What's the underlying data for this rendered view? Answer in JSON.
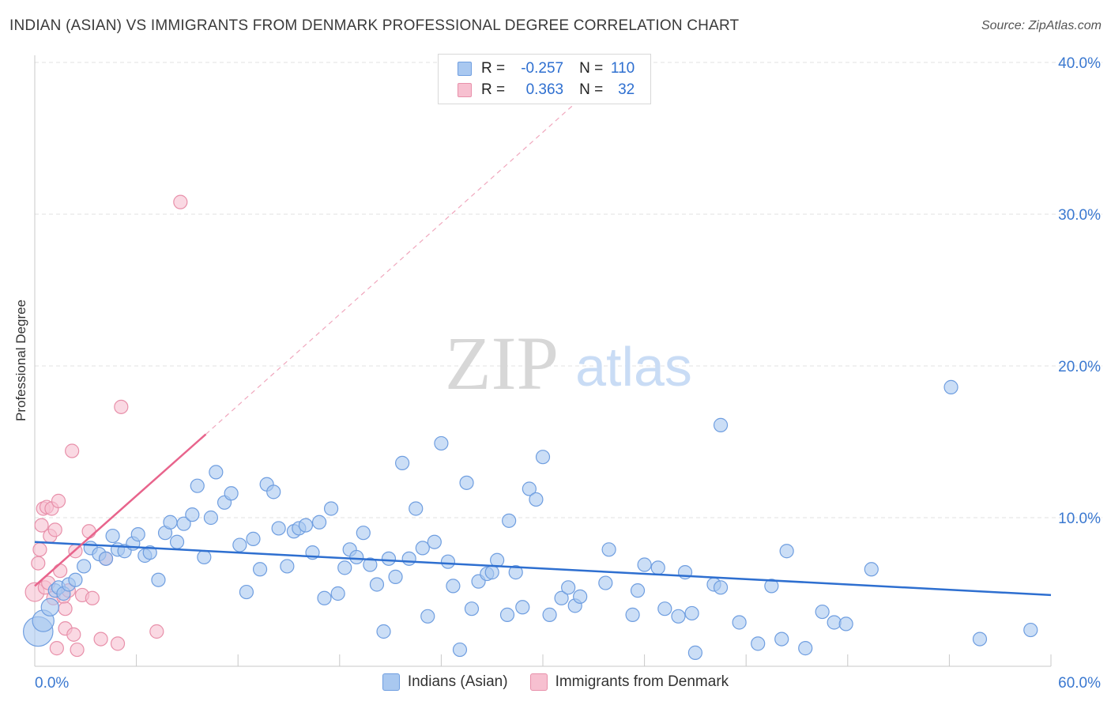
{
  "header": {
    "title": "INDIAN (ASIAN) VS IMMIGRANTS FROM DENMARK PROFESSIONAL DEGREE CORRELATION CHART",
    "source": "Source: ZipAtlas.com"
  },
  "watermark": {
    "zip": "ZIP",
    "atlas": "atlas"
  },
  "legend": {
    "rows": [
      {
        "r_label": "R =",
        "r_value": "-0.257",
        "n_label": "N =",
        "n_value": "110",
        "color": "#a9c8f0",
        "border": "#6f9ee0"
      },
      {
        "r_label": "R =",
        "r_value": "0.363",
        "n_label": "N =",
        "n_value": "32",
        "color": "#f7c0d0",
        "border": "#e890aa"
      }
    ]
  },
  "bottom_legend": {
    "series1": "Indians (Asian)",
    "series2": "Immigrants from Denmark"
  },
  "colors": {
    "blue_fill": "#a9c8f0",
    "blue_stroke": "#6f9ee0",
    "blue_line": "#2e6fd0",
    "pink_fill": "#f7c0d0",
    "pink_stroke": "#e890aa",
    "pink_line": "#e8648c",
    "tick_label": "#3a78d0",
    "grid": "#e2e2e2"
  },
  "chart_data": {
    "type": "scatter",
    "title": "INDIAN (ASIAN) VS IMMIGRANTS FROM DENMARK PROFESSIONAL DEGREE CORRELATION CHART",
    "xlabel": "",
    "ylabel": "Professional Degree",
    "xlim": [
      0,
      60
    ],
    "ylim": [
      0,
      42
    ],
    "x_tick_labels": [
      "0.0%",
      "60.0%"
    ],
    "y_ticks": [
      10,
      20,
      30,
      40
    ],
    "y_tick_labels": [
      "10.0%",
      "20.0%",
      "30.0%",
      "40.0%"
    ],
    "grid": true,
    "series": [
      {
        "name": "Indians (Asian)",
        "r": -0.257,
        "n": 110,
        "trend": {
          "x0": 0,
          "y0": 8.4,
          "x1": 60,
          "y1": 4.9
        },
        "points": [
          {
            "x": 0.2,
            "y": 2.5,
            "s": 2.2
          },
          {
            "x": 0.5,
            "y": 3.2,
            "s": 1.6
          },
          {
            "x": 0.9,
            "y": 4.1,
            "s": 1.3
          },
          {
            "x": 1.2,
            "y": 5.2,
            "s": 1
          },
          {
            "x": 1.4,
            "y": 5.4,
            "s": 1
          },
          {
            "x": 1.7,
            "y": 5.0,
            "s": 1
          },
          {
            "x": 2.0,
            "y": 5.6,
            "s": 1
          },
          {
            "x": 2.4,
            "y": 5.9,
            "s": 1
          },
          {
            "x": 2.9,
            "y": 6.8,
            "s": 1
          },
          {
            "x": 3.3,
            "y": 8.0,
            "s": 1
          },
          {
            "x": 3.8,
            "y": 7.6,
            "s": 1
          },
          {
            "x": 4.2,
            "y": 7.3,
            "s": 1
          },
          {
            "x": 4.6,
            "y": 8.8,
            "s": 1
          },
          {
            "x": 4.9,
            "y": 7.9,
            "s": 1
          },
          {
            "x": 5.3,
            "y": 7.8,
            "s": 1
          },
          {
            "x": 5.8,
            "y": 8.3,
            "s": 1
          },
          {
            "x": 6.1,
            "y": 8.9,
            "s": 1
          },
          {
            "x": 6.5,
            "y": 7.5,
            "s": 1
          },
          {
            "x": 6.8,
            "y": 7.7,
            "s": 1
          },
          {
            "x": 7.3,
            "y": 5.9,
            "s": 1
          },
          {
            "x": 7.7,
            "y": 9.0,
            "s": 1
          },
          {
            "x": 8.0,
            "y": 9.7,
            "s": 1
          },
          {
            "x": 8.4,
            "y": 8.4,
            "s": 1
          },
          {
            "x": 8.8,
            "y": 9.6,
            "s": 1
          },
          {
            "x": 9.3,
            "y": 10.2,
            "s": 1
          },
          {
            "x": 9.6,
            "y": 12.1,
            "s": 1
          },
          {
            "x": 10.0,
            "y": 7.4,
            "s": 1
          },
          {
            "x": 10.4,
            "y": 10.0,
            "s": 1
          },
          {
            "x": 10.7,
            "y": 13.0,
            "s": 1
          },
          {
            "x": 11.2,
            "y": 11.0,
            "s": 1
          },
          {
            "x": 11.6,
            "y": 11.6,
            "s": 1
          },
          {
            "x": 12.1,
            "y": 8.2,
            "s": 1
          },
          {
            "x": 12.5,
            "y": 5.1,
            "s": 1
          },
          {
            "x": 12.9,
            "y": 8.6,
            "s": 1
          },
          {
            "x": 13.3,
            "y": 6.6,
            "s": 1
          },
          {
            "x": 13.7,
            "y": 12.2,
            "s": 1
          },
          {
            "x": 14.1,
            "y": 11.7,
            "s": 1
          },
          {
            "x": 14.4,
            "y": 9.3,
            "s": 1
          },
          {
            "x": 14.9,
            "y": 6.8,
            "s": 1
          },
          {
            "x": 15.3,
            "y": 9.1,
            "s": 1
          },
          {
            "x": 15.6,
            "y": 9.3,
            "s": 1
          },
          {
            "x": 16.0,
            "y": 9.5,
            "s": 1
          },
          {
            "x": 16.4,
            "y": 7.7,
            "s": 1
          },
          {
            "x": 16.8,
            "y": 9.7,
            "s": 1
          },
          {
            "x": 17.1,
            "y": 4.7,
            "s": 1
          },
          {
            "x": 17.5,
            "y": 10.6,
            "s": 1
          },
          {
            "x": 17.9,
            "y": 5.0,
            "s": 1
          },
          {
            "x": 18.3,
            "y": 6.7,
            "s": 1
          },
          {
            "x": 18.6,
            "y": 7.9,
            "s": 1
          },
          {
            "x": 19.0,
            "y": 7.4,
            "s": 1
          },
          {
            "x": 19.4,
            "y": 9.0,
            "s": 1
          },
          {
            "x": 19.8,
            "y": 6.9,
            "s": 1
          },
          {
            "x": 20.2,
            "y": 5.6,
            "s": 1
          },
          {
            "x": 20.6,
            "y": 2.5,
            "s": 1
          },
          {
            "x": 20.9,
            "y": 7.3,
            "s": 1
          },
          {
            "x": 21.3,
            "y": 6.1,
            "s": 1
          },
          {
            "x": 21.7,
            "y": 13.6,
            "s": 1
          },
          {
            "x": 22.1,
            "y": 7.3,
            "s": 1
          },
          {
            "x": 22.5,
            "y": 10.6,
            "s": 1
          },
          {
            "x": 22.9,
            "y": 8.0,
            "s": 1
          },
          {
            "x": 23.2,
            "y": 3.5,
            "s": 1
          },
          {
            "x": 23.6,
            "y": 8.4,
            "s": 1
          },
          {
            "x": 24.0,
            "y": 14.9,
            "s": 1
          },
          {
            "x": 24.4,
            "y": 7.1,
            "s": 1
          },
          {
            "x": 24.7,
            "y": 5.5,
            "s": 1
          },
          {
            "x": 25.1,
            "y": 1.3,
            "s": 1
          },
          {
            "x": 25.5,
            "y": 12.3,
            "s": 1
          },
          {
            "x": 25.8,
            "y": 4.0,
            "s": 1
          },
          {
            "x": 26.2,
            "y": 5.8,
            "s": 1
          },
          {
            "x": 26.7,
            "y": 6.3,
            "s": 1
          },
          {
            "x": 27.0,
            "y": 6.4,
            "s": 1
          },
          {
            "x": 27.3,
            "y": 7.2,
            "s": 1
          },
          {
            "x": 27.9,
            "y": 3.6,
            "s": 1
          },
          {
            "x": 28.0,
            "y": 9.8,
            "s": 1
          },
          {
            "x": 28.4,
            "y": 6.4,
            "s": 1
          },
          {
            "x": 28.8,
            "y": 4.1,
            "s": 1
          },
          {
            "x": 29.2,
            "y": 11.9,
            "s": 1
          },
          {
            "x": 29.6,
            "y": 11.2,
            "s": 1
          },
          {
            "x": 30.0,
            "y": 14.0,
            "s": 1
          },
          {
            "x": 30.4,
            "y": 3.6,
            "s": 1
          },
          {
            "x": 31.1,
            "y": 4.7,
            "s": 1
          },
          {
            "x": 31.5,
            "y": 5.4,
            "s": 1
          },
          {
            "x": 31.9,
            "y": 4.2,
            "s": 1
          },
          {
            "x": 32.2,
            "y": 4.8,
            "s": 1
          },
          {
            "x": 33.7,
            "y": 5.7,
            "s": 1
          },
          {
            "x": 33.9,
            "y": 7.9,
            "s": 1
          },
          {
            "x": 35.3,
            "y": 3.6,
            "s": 1
          },
          {
            "x": 35.6,
            "y": 5.2,
            "s": 1
          },
          {
            "x": 36.0,
            "y": 6.9,
            "s": 1
          },
          {
            "x": 36.8,
            "y": 6.7,
            "s": 1
          },
          {
            "x": 37.2,
            "y": 4.0,
            "s": 1
          },
          {
            "x": 38.0,
            "y": 3.5,
            "s": 1
          },
          {
            "x": 38.4,
            "y": 6.4,
            "s": 1
          },
          {
            "x": 38.8,
            "y": 3.7,
            "s": 1
          },
          {
            "x": 39.0,
            "y": 1.1,
            "s": 1
          },
          {
            "x": 40.1,
            "y": 5.6,
            "s": 1
          },
          {
            "x": 40.5,
            "y": 5.4,
            "s": 1
          },
          {
            "x": 40.5,
            "y": 16.1,
            "s": 1
          },
          {
            "x": 41.6,
            "y": 3.1,
            "s": 1
          },
          {
            "x": 42.7,
            "y": 1.7,
            "s": 1
          },
          {
            "x": 43.5,
            "y": 5.5,
            "s": 1
          },
          {
            "x": 44.1,
            "y": 2.0,
            "s": 1
          },
          {
            "x": 44.4,
            "y": 7.8,
            "s": 1
          },
          {
            "x": 45.5,
            "y": 1.4,
            "s": 1
          },
          {
            "x": 46.5,
            "y": 3.8,
            "s": 1
          },
          {
            "x": 47.2,
            "y": 3.1,
            "s": 1
          },
          {
            "x": 47.9,
            "y": 3.0,
            "s": 1
          },
          {
            "x": 49.4,
            "y": 6.6,
            "s": 1
          },
          {
            "x": 54.1,
            "y": 18.6,
            "s": 1
          },
          {
            "x": 55.8,
            "y": 2.0,
            "s": 1
          },
          {
            "x": 58.8,
            "y": 2.6,
            "s": 1
          }
        ]
      },
      {
        "name": "Immigrants from Denmark",
        "r": 0.363,
        "n": 32,
        "trend": {
          "x0": 0,
          "y0": 5.5,
          "x1": 10.1,
          "y1": 15.5
        },
        "trend_extension": {
          "x0": 10.1,
          "y0": 15.5,
          "x1": 32.8,
          "y1": 38.2
        },
        "points": [
          {
            "x": 0.0,
            "y": 5.1,
            "s": 1.4
          },
          {
            "x": 0.2,
            "y": 7.0,
            "s": 1
          },
          {
            "x": 0.3,
            "y": 7.9,
            "s": 1
          },
          {
            "x": 0.4,
            "y": 9.5,
            "s": 1
          },
          {
            "x": 0.5,
            "y": 10.6,
            "s": 1
          },
          {
            "x": 0.6,
            "y": 5.4,
            "s": 1
          },
          {
            "x": 0.7,
            "y": 10.7,
            "s": 1
          },
          {
            "x": 0.8,
            "y": 5.7,
            "s": 1
          },
          {
            "x": 0.9,
            "y": 8.8,
            "s": 1
          },
          {
            "x": 1.0,
            "y": 10.6,
            "s": 1
          },
          {
            "x": 1.1,
            "y": 4.7,
            "s": 1
          },
          {
            "x": 1.2,
            "y": 9.2,
            "s": 1
          },
          {
            "x": 1.3,
            "y": 1.4,
            "s": 1
          },
          {
            "x": 1.4,
            "y": 11.1,
            "s": 1
          },
          {
            "x": 1.5,
            "y": 6.5,
            "s": 1
          },
          {
            "x": 1.7,
            "y": 4.8,
            "s": 1
          },
          {
            "x": 1.8,
            "y": 4.0,
            "s": 1
          },
          {
            "x": 1.8,
            "y": 2.7,
            "s": 1
          },
          {
            "x": 2.0,
            "y": 5.2,
            "s": 1
          },
          {
            "x": 2.2,
            "y": 14.4,
            "s": 1
          },
          {
            "x": 2.3,
            "y": 2.3,
            "s": 1
          },
          {
            "x": 2.4,
            "y": 7.8,
            "s": 1
          },
          {
            "x": 2.5,
            "y": 1.3,
            "s": 1
          },
          {
            "x": 2.8,
            "y": 4.9,
            "s": 1
          },
          {
            "x": 3.2,
            "y": 9.1,
            "s": 1
          },
          {
            "x": 3.4,
            "y": 4.7,
            "s": 1
          },
          {
            "x": 3.9,
            "y": 2.0,
            "s": 1
          },
          {
            "x": 4.2,
            "y": 7.3,
            "s": 1
          },
          {
            "x": 4.9,
            "y": 1.7,
            "s": 1
          },
          {
            "x": 5.1,
            "y": 17.3,
            "s": 1
          },
          {
            "x": 7.2,
            "y": 2.5,
            "s": 1
          },
          {
            "x": 8.6,
            "y": 30.8,
            "s": 1
          }
        ]
      }
    ]
  }
}
